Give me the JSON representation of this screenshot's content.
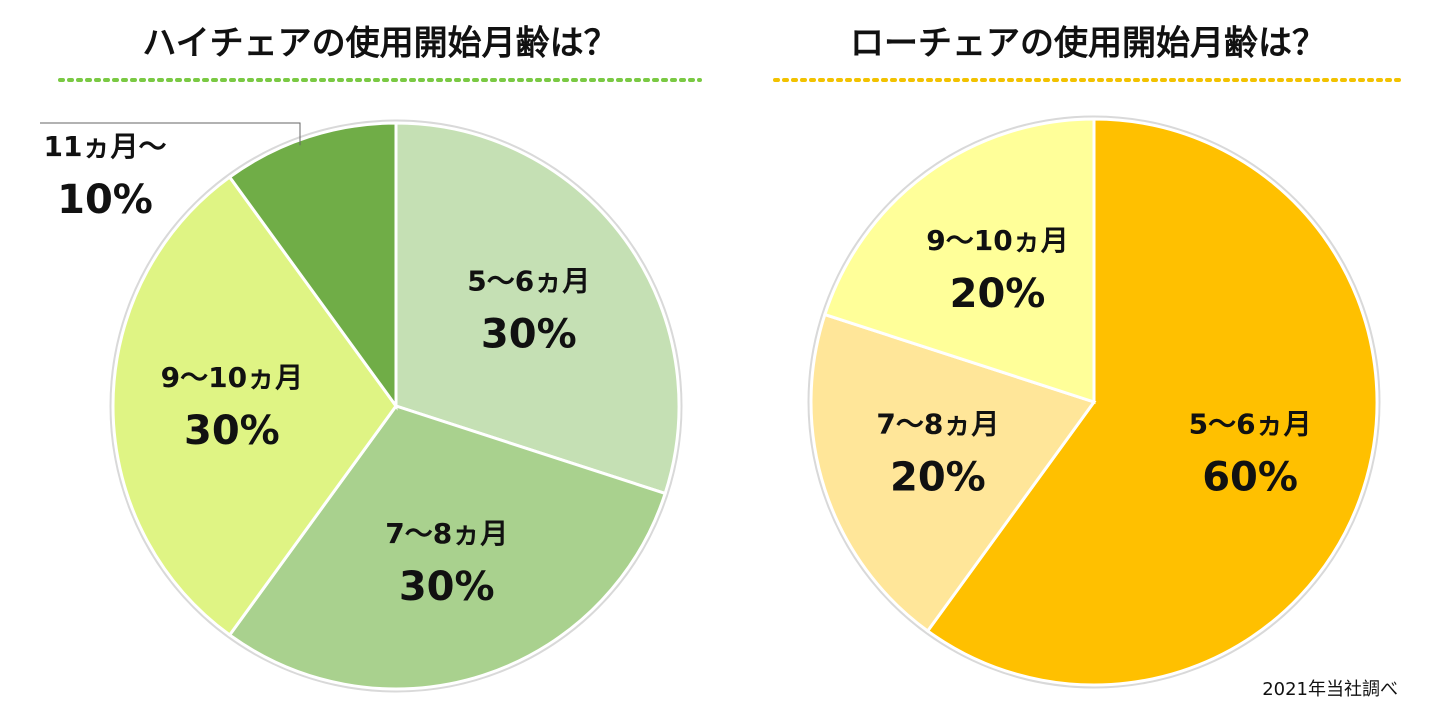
{
  "chart_data": [
    {
      "type": "pie",
      "title": "ハイチェアの使用開始月齢は？",
      "categories": [
        "5～6ヵ月",
        "7～8ヵ月",
        "9～10ヵ月",
        "11ヵ月～"
      ],
      "values": [
        30,
        30,
        30,
        10
      ],
      "value_labels": [
        "30%",
        "30%",
        "30%",
        "10%"
      ],
      "colors": [
        "#c5e0b4",
        "#a9d18e",
        "#dff484",
        "#70ad47"
      ]
    },
    {
      "type": "pie",
      "title": "ローチェアの使用開始月齢は？",
      "categories": [
        "5～6ヵ月",
        "7～8ヵ月",
        "9～10ヵ月"
      ],
      "values": [
        60,
        20,
        20
      ],
      "value_labels": [
        "60%",
        "20%",
        "20%"
      ],
      "colors": [
        "#ffc000",
        "#ffe699",
        "#ffff99"
      ]
    }
  ],
  "source": "2021年当社調べ"
}
